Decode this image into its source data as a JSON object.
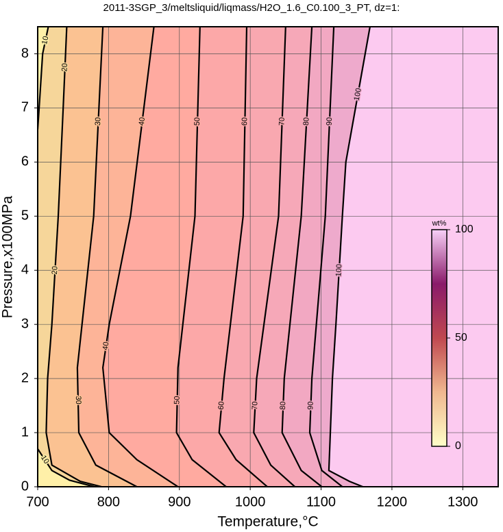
{
  "chart_data": {
    "type": "contour",
    "title": "2011-3SGP_3/meltsliquid/liqmass/H2O_1.6_C0.100_3_PT, dz=1:",
    "x_label": "Temperature,°C",
    "y_label": "Pressure,x100MPa",
    "xlim": [
      700,
      1350
    ],
    "ylim": [
      0,
      8.5
    ],
    "xticks": [
      700,
      800,
      900,
      1000,
      1100,
      1200,
      1300
    ],
    "yticks": [
      0,
      1,
      2,
      3,
      4,
      5,
      6,
      7,
      8
    ],
    "grid": true,
    "background": "#fccaf0",
    "contours": [
      {
        "level": 100,
        "fill": "#eeaacc",
        "x": [
          1169,
          1135,
          1130,
          1121,
          1116,
          1111,
          1140,
          1159
        ],
        "y": [
          8.5,
          6,
          5,
          3,
          2,
          0.3,
          0.1,
          0
        ]
      },
      {
        "level": 90,
        "fill": "#f2a8c2",
        "x": [
          1118,
          1106,
          1087,
          1084,
          1101,
          1130
        ],
        "y": [
          8.5,
          5,
          2,
          1,
          0.3,
          0
        ]
      },
      {
        "level": 80,
        "fill": "#f6a8b8",
        "x": [
          1087,
          1072,
          1048,
          1045,
          1072,
          1101
        ],
        "y": [
          8.5,
          5,
          2,
          1,
          0.3,
          0
        ]
      },
      {
        "level": 70,
        "fill": "#f9a8b0",
        "x": [
          1050,
          1040,
          1009,
          1005,
          1029,
          1063
        ],
        "y": [
          8.5,
          5,
          2,
          1,
          0.4,
          0
        ]
      },
      {
        "level": 60,
        "fill": "#fca8a8",
        "x": [
          995,
          990,
          963,
          956,
          980,
          1024
        ],
        "y": [
          8.5,
          5,
          2,
          1,
          0.5,
          0
        ]
      },
      {
        "level": 50,
        "fill": "#ffaaa0",
        "x": [
          929,
          922,
          898,
          896,
          918,
          966
        ],
        "y": [
          8.5,
          5,
          2.2,
          1,
          0.5,
          0
        ]
      },
      {
        "level": 40,
        "fill": "#fdb498",
        "x": [
          864,
          831,
          801,
          792,
          801,
          840,
          898
        ],
        "y": [
          8.5,
          5,
          3,
          2.2,
          1,
          0.5,
          0
        ]
      },
      {
        "level": 30,
        "fill": "#fbc292",
        "x": [
          792,
          779,
          756,
          758,
          782,
          840
        ],
        "y": [
          8.5,
          5,
          2.2,
          1,
          0.4,
          0
        ]
      },
      {
        "level": 20,
        "fill": "#f6d69a",
        "x": [
          741,
          736,
          729,
          720,
          714,
          712,
          720,
          760,
          790
        ],
        "y": [
          8.5,
          7,
          5,
          3,
          2,
          1,
          0.4,
          0.1,
          0
        ]
      },
      {
        "level": 10,
        "fill": "#fff0a8",
        "x": [
          715,
          707,
          702,
          700
        ],
        "y": [
          8.5,
          8,
          7,
          6.6
        ]
      },
      {
        "level": 10,
        "fill": "#fff0a8",
        "x": [
          700,
          720,
          745,
          780
        ],
        "y": [
          0.7,
          0.3,
          0.12,
          0
        ]
      }
    ],
    "colorbar": {
      "label": "wt%",
      "lim": [
        0,
        100
      ],
      "ticks": [
        0,
        50,
        100
      ],
      "colors": [
        "#ffffc8",
        "#f0b890",
        "#c04850",
        "#8a1a6a",
        "#f8d0f8"
      ]
    }
  }
}
